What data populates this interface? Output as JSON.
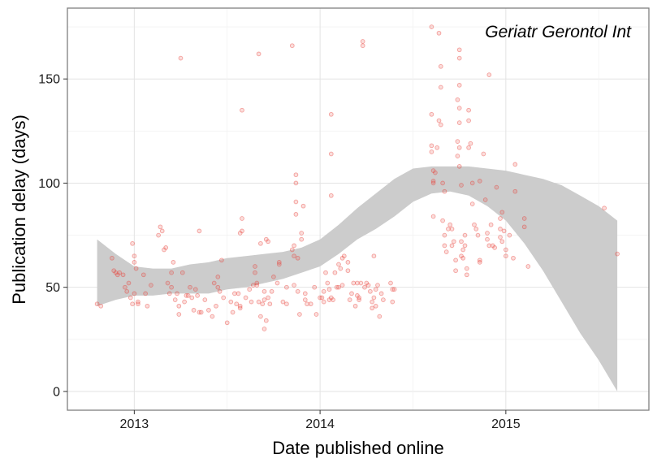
{
  "chart_data": {
    "type": "scatter",
    "xlabel": "Date published online",
    "ylabel": "Publication delay (days)",
    "annotation": "Geriatr Gerontol Int",
    "xlim": [
      2012.64,
      2015.77
    ],
    "ylim": [
      -9,
      184
    ],
    "x_ticks": [
      2013,
      2014,
      2015
    ],
    "x_tick_labels": [
      "2013",
      "2014",
      "2015"
    ],
    "y_ticks": [
      0,
      50,
      100,
      150
    ],
    "y_tick_labels": [
      "0",
      "50",
      "100",
      "150"
    ],
    "grid": true,
    "point_color": "#e8403a",
    "ribbon_color": "#cccccc",
    "points": [
      [
        2012.8,
        42
      ],
      [
        2012.82,
        41
      ],
      [
        2012.88,
        64
      ],
      [
        2012.89,
        58
      ],
      [
        2012.9,
        57
      ],
      [
        2012.91,
        56
      ],
      [
        2012.92,
        57
      ],
      [
        2012.94,
        56
      ],
      [
        2012.95,
        50
      ],
      [
        2012.96,
        48
      ],
      [
        2012.97,
        52
      ],
      [
        2012.98,
        45
      ],
      [
        2012.99,
        42
      ],
      [
        2012.99,
        71
      ],
      [
        2013.0,
        65
      ],
      [
        2013.0,
        62
      ],
      [
        2013.0,
        47
      ],
      [
        2013.01,
        59
      ],
      [
        2013.02,
        43
      ],
      [
        2013.02,
        42
      ],
      [
        2013.05,
        56
      ],
      [
        2013.06,
        47
      ],
      [
        2013.07,
        41
      ],
      [
        2013.09,
        51
      ],
      [
        2013.13,
        75
      ],
      [
        2013.14,
        79
      ],
      [
        2013.15,
        77
      ],
      [
        2013.16,
        68
      ],
      [
        2013.17,
        69
      ],
      [
        2013.18,
        52
      ],
      [
        2013.19,
        47
      ],
      [
        2013.2,
        57
      ],
      [
        2013.2,
        50
      ],
      [
        2013.21,
        62
      ],
      [
        2013.22,
        44
      ],
      [
        2013.23,
        47
      ],
      [
        2013.24,
        41
      ],
      [
        2013.24,
        37
      ],
      [
        2013.25,
        160
      ],
      [
        2013.26,
        57
      ],
      [
        2013.27,
        43
      ],
      [
        2013.28,
        46
      ],
      [
        2013.29,
        46
      ],
      [
        2013.3,
        50
      ],
      [
        2013.31,
        45
      ],
      [
        2013.32,
        39
      ],
      [
        2013.33,
        49
      ],
      [
        2013.34,
        46
      ],
      [
        2013.35,
        38
      ],
      [
        2013.35,
        77
      ],
      [
        2013.36,
        38
      ],
      [
        2013.38,
        44
      ],
      [
        2013.4,
        39
      ],
      [
        2013.42,
        36
      ],
      [
        2013.43,
        52
      ],
      [
        2013.44,
        41
      ],
      [
        2013.45,
        55
      ],
      [
        2013.45,
        50
      ],
      [
        2013.46,
        48
      ],
      [
        2013.47,
        63
      ],
      [
        2013.48,
        45
      ],
      [
        2013.5,
        33
      ],
      [
        2013.52,
        43
      ],
      [
        2013.53,
        38
      ],
      [
        2013.54,
        47
      ],
      [
        2013.55,
        42
      ],
      [
        2013.56,
        47
      ],
      [
        2013.57,
        40
      ],
      [
        2013.57,
        41
      ],
      [
        2013.57,
        76
      ],
      [
        2013.58,
        83
      ],
      [
        2013.58,
        77
      ],
      [
        2013.58,
        135
      ],
      [
        2013.6,
        45
      ],
      [
        2013.62,
        49
      ],
      [
        2013.63,
        43
      ],
      [
        2013.64,
        51
      ],
      [
        2013.65,
        60
      ],
      [
        2013.65,
        57
      ],
      [
        2013.66,
        51
      ],
      [
        2013.66,
        52
      ],
      [
        2013.67,
        43
      ],
      [
        2013.67,
        162
      ],
      [
        2013.68,
        71
      ],
      [
        2013.68,
        36
      ],
      [
        2013.69,
        42
      ],
      [
        2013.7,
        44
      ],
      [
        2013.7,
        30
      ],
      [
        2013.7,
        48
      ],
      [
        2013.71,
        34
      ],
      [
        2013.71,
        73
      ],
      [
        2013.72,
        72
      ],
      [
        2013.72,
        45
      ],
      [
        2013.73,
        42
      ],
      [
        2013.74,
        48
      ],
      [
        2013.75,
        55
      ],
      [
        2013.77,
        52
      ],
      [
        2013.78,
        61
      ],
      [
        2013.78,
        62
      ],
      [
        2013.8,
        43
      ],
      [
        2013.82,
        42
      ],
      [
        2013.82,
        50
      ],
      [
        2013.85,
        68
      ],
      [
        2013.85,
        166
      ],
      [
        2013.86,
        70
      ],
      [
        2013.86,
        65
      ],
      [
        2013.86,
        51
      ],
      [
        2013.87,
        104
      ],
      [
        2013.87,
        100
      ],
      [
        2013.87,
        91
      ],
      [
        2013.87,
        85
      ],
      [
        2013.88,
        48
      ],
      [
        2013.88,
        64
      ],
      [
        2013.89,
        37
      ],
      [
        2013.9,
        73
      ],
      [
        2013.9,
        76
      ],
      [
        2013.91,
        89
      ],
      [
        2013.92,
        44
      ],
      [
        2013.92,
        47
      ],
      [
        2013.93,
        42
      ],
      [
        2013.95,
        42
      ],
      [
        2013.97,
        50
      ],
      [
        2013.98,
        37
      ],
      [
        2014.0,
        45
      ],
      [
        2014.01,
        45
      ],
      [
        2014.02,
        48
      ],
      [
        2014.02,
        43
      ],
      [
        2014.03,
        57
      ],
      [
        2014.04,
        52
      ],
      [
        2014.05,
        44
      ],
      [
        2014.05,
        49
      ],
      [
        2014.06,
        114
      ],
      [
        2014.06,
        94
      ],
      [
        2014.06,
        133
      ],
      [
        2014.06,
        45
      ],
      [
        2014.07,
        44
      ],
      [
        2014.08,
        57
      ],
      [
        2014.09,
        50
      ],
      [
        2014.1,
        50
      ],
      [
        2014.1,
        61
      ],
      [
        2014.11,
        59
      ],
      [
        2014.12,
        51
      ],
      [
        2014.12,
        64
      ],
      [
        2014.13,
        65
      ],
      [
        2014.15,
        62
      ],
      [
        2014.15,
        58
      ],
      [
        2014.16,
        44
      ],
      [
        2014.17,
        47
      ],
      [
        2014.18,
        52
      ],
      [
        2014.19,
        41
      ],
      [
        2014.2,
        52
      ],
      [
        2014.2,
        46
      ],
      [
        2014.21,
        45
      ],
      [
        2014.21,
        44
      ],
      [
        2014.22,
        52
      ],
      [
        2014.23,
        168
      ],
      [
        2014.23,
        166
      ],
      [
        2014.24,
        50
      ],
      [
        2014.25,
        52
      ],
      [
        2014.26,
        51
      ],
      [
        2014.27,
        48
      ],
      [
        2014.28,
        43
      ],
      [
        2014.28,
        40
      ],
      [
        2014.29,
        65
      ],
      [
        2014.29,
        45
      ],
      [
        2014.3,
        49
      ],
      [
        2014.3,
        41
      ],
      [
        2014.31,
        51
      ],
      [
        2014.32,
        36
      ],
      [
        2014.33,
        47
      ],
      [
        2014.34,
        44
      ],
      [
        2014.38,
        52
      ],
      [
        2014.39,
        49
      ],
      [
        2014.39,
        43
      ],
      [
        2014.4,
        49
      ],
      [
        2014.6,
        175
      ],
      [
        2014.6,
        133
      ],
      [
        2014.6,
        118
      ],
      [
        2014.6,
        115
      ],
      [
        2014.61,
        106
      ],
      [
        2014.61,
        101
      ],
      [
        2014.61,
        100
      ],
      [
        2014.61,
        84
      ],
      [
        2014.62,
        105
      ],
      [
        2014.63,
        117
      ],
      [
        2014.64,
        130
      ],
      [
        2014.64,
        172
      ],
      [
        2014.65,
        156
      ],
      [
        2014.65,
        146
      ],
      [
        2014.65,
        128
      ],
      [
        2014.66,
        100
      ],
      [
        2014.66,
        82
      ],
      [
        2014.67,
        96
      ],
      [
        2014.67,
        75
      ],
      [
        2014.67,
        70
      ],
      [
        2014.68,
        67
      ],
      [
        2014.69,
        78
      ],
      [
        2014.7,
        80
      ],
      [
        2014.71,
        78
      ],
      [
        2014.71,
        70
      ],
      [
        2014.72,
        72
      ],
      [
        2014.73,
        58
      ],
      [
        2014.73,
        63
      ],
      [
        2014.74,
        140
      ],
      [
        2014.74,
        120
      ],
      [
        2014.74,
        113
      ],
      [
        2014.75,
        160
      ],
      [
        2014.75,
        164
      ],
      [
        2014.75,
        147
      ],
      [
        2014.75,
        136
      ],
      [
        2014.75,
        129
      ],
      [
        2014.75,
        117
      ],
      [
        2014.75,
        108
      ],
      [
        2014.76,
        99
      ],
      [
        2014.76,
        72
      ],
      [
        2014.76,
        65
      ],
      [
        2014.77,
        68
      ],
      [
        2014.77,
        64
      ],
      [
        2014.78,
        75
      ],
      [
        2014.78,
        70
      ],
      [
        2014.79,
        56
      ],
      [
        2014.79,
        59
      ],
      [
        2014.8,
        135
      ],
      [
        2014.8,
        130
      ],
      [
        2014.8,
        117
      ],
      [
        2014.81,
        119
      ],
      [
        2014.82,
        100
      ],
      [
        2014.82,
        90
      ],
      [
        2014.83,
        80
      ],
      [
        2014.84,
        78
      ],
      [
        2014.85,
        75
      ],
      [
        2014.86,
        62
      ],
      [
        2014.86,
        63
      ],
      [
        2014.86,
        101
      ],
      [
        2014.88,
        114
      ],
      [
        2014.89,
        92
      ],
      [
        2014.9,
        76
      ],
      [
        2014.9,
        73
      ],
      [
        2014.91,
        70
      ],
      [
        2014.91,
        152
      ],
      [
        2014.92,
        80
      ],
      [
        2014.93,
        70
      ],
      [
        2014.94,
        69
      ],
      [
        2014.95,
        98
      ],
      [
        2014.97,
        78
      ],
      [
        2014.97,
        74
      ],
      [
        2014.97,
        83
      ],
      [
        2014.98,
        72
      ],
      [
        2014.98,
        86
      ],
      [
        2014.99,
        77
      ],
      [
        2015.0,
        65
      ],
      [
        2015.0,
        68
      ],
      [
        2015.02,
        75
      ],
      [
        2015.04,
        64
      ],
      [
        2015.05,
        96
      ],
      [
        2015.05,
        109
      ],
      [
        2015.1,
        83
      ],
      [
        2015.1,
        79
      ],
      [
        2015.12,
        60
      ],
      [
        2015.53,
        88
      ],
      [
        2015.6,
        66
      ]
    ],
    "smooth": [
      {
        "x": 2012.8,
        "y": 57,
        "lo": 41,
        "hi": 73
      },
      {
        "x": 2012.9,
        "y": 55,
        "lo": 44,
        "hi": 66
      },
      {
        "x": 2013.0,
        "y": 53,
        "lo": 46,
        "hi": 60
      },
      {
        "x": 2013.1,
        "y": 52.5,
        "lo": 46,
        "hi": 59
      },
      {
        "x": 2013.2,
        "y": 52.5,
        "lo": 47,
        "hi": 59
      },
      {
        "x": 2013.3,
        "y": 52.5,
        "lo": 47,
        "hi": 61
      },
      {
        "x": 2013.4,
        "y": 53,
        "lo": 47,
        "hi": 62
      },
      {
        "x": 2013.5,
        "y": 54,
        "lo": 49,
        "hi": 64
      },
      {
        "x": 2013.6,
        "y": 55,
        "lo": 50,
        "hi": 65
      },
      {
        "x": 2013.7,
        "y": 57,
        "lo": 52,
        "hi": 66
      },
      {
        "x": 2013.8,
        "y": 59,
        "lo": 54,
        "hi": 67
      },
      {
        "x": 2013.9,
        "y": 62,
        "lo": 57,
        "hi": 69
      },
      {
        "x": 2014.0,
        "y": 66,
        "lo": 60,
        "hi": 73
      },
      {
        "x": 2014.1,
        "y": 72,
        "lo": 66,
        "hi": 80
      },
      {
        "x": 2014.2,
        "y": 79,
        "lo": 73,
        "hi": 88
      },
      {
        "x": 2014.3,
        "y": 86,
        "lo": 78,
        "hi": 95
      },
      {
        "x": 2014.4,
        "y": 94,
        "lo": 84,
        "hi": 102
      },
      {
        "x": 2014.5,
        "y": 99,
        "lo": 91,
        "hi": 107
      },
      {
        "x": 2014.6,
        "y": 101,
        "lo": 95,
        "hi": 108
      },
      {
        "x": 2014.7,
        "y": 101,
        "lo": 96,
        "hi": 108
      },
      {
        "x": 2014.8,
        "y": 100,
        "lo": 94,
        "hi": 108
      },
      {
        "x": 2014.9,
        "y": 97,
        "lo": 89,
        "hi": 107
      },
      {
        "x": 2015.0,
        "y": 93,
        "lo": 82,
        "hi": 106
      },
      {
        "x": 2015.1,
        "y": 87,
        "lo": 71,
        "hi": 104
      },
      {
        "x": 2015.2,
        "y": 79,
        "lo": 58,
        "hi": 102
      },
      {
        "x": 2015.3,
        "y": 70,
        "lo": 43,
        "hi": 99
      },
      {
        "x": 2015.4,
        "y": 60,
        "lo": 28,
        "hi": 94
      },
      {
        "x": 2015.5,
        "y": 50,
        "lo": 15,
        "hi": 89
      },
      {
        "x": 2015.6,
        "y": 40,
        "lo": 0,
        "hi": 82
      }
    ]
  }
}
